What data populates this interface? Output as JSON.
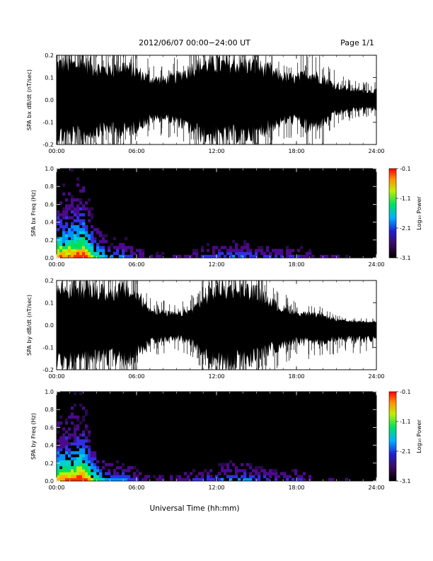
{
  "header": {
    "title": "2012/06/07  00:00−24:00 UT",
    "page": "Page 1/1"
  },
  "xlabel": "Universal Time (hh:mm)",
  "colors": {
    "background": "#ffffff",
    "trace": "#000000",
    "spectrogram_bg": "#000000"
  },
  "chart_data": [
    {
      "type": "line",
      "title": "",
      "ylabel": "SPA bx dB/dt (nT/sec)",
      "xlim": [
        0,
        24
      ],
      "ylim": [
        -0.2,
        0.2
      ],
      "x_ticks": [
        "00:00",
        "06:00",
        "12:00",
        "18:00",
        "24:00"
      ],
      "y_ticks": [
        "-0.2",
        "-0.1",
        "0.0",
        "0.1",
        "0.2"
      ],
      "x": [
        0,
        1,
        2,
        3,
        4,
        5,
        6,
        7,
        8,
        9,
        10,
        11,
        12,
        13,
        14,
        15,
        16,
        17,
        18,
        19,
        20,
        21,
        22,
        23,
        24
      ],
      "series": [
        {
          "values_top": [
            0.2,
            0.2,
            0.2,
            0.18,
            0.17,
            0.19,
            0.16,
            0.12,
            0.11,
            0.13,
            0.17,
            0.2,
            0.2,
            0.2,
            0.2,
            0.19,
            0.16,
            0.13,
            0.12,
            0.15,
            0.12,
            0.08,
            0.06,
            0.05,
            0.05
          ],
          "values_bottom": [
            -0.2,
            -0.2,
            -0.2,
            -0.17,
            -0.16,
            -0.18,
            -0.15,
            -0.11,
            -0.1,
            -0.12,
            -0.16,
            -0.2,
            -0.2,
            -0.2,
            -0.2,
            -0.19,
            -0.15,
            -0.12,
            -0.11,
            -0.16,
            -0.13,
            -0.08,
            -0.06,
            -0.05,
            -0.05
          ]
        }
      ],
      "grid": false
    },
    {
      "type": "heatmap",
      "title": "",
      "ylabel": "SPA bx Freq (Hz)",
      "xlim": [
        0,
        24
      ],
      "ylim": [
        0.0,
        1.0
      ],
      "x_ticks": [
        "00:00",
        "06:00",
        "12:00",
        "18:00",
        "24:00"
      ],
      "y_ticks": [
        "0.0",
        "0.2",
        "0.4",
        "0.6",
        "0.8",
        "1.0"
      ],
      "colorbar": {
        "label": "Log₁₀ Power",
        "ticks": [
          "-0.1",
          "-1.1",
          "-2.1",
          "-3.1"
        ],
        "range": [
          -3.1,
          -0.1
        ]
      },
      "activity_hours": [
        0,
        1,
        2,
        3,
        4,
        5,
        6,
        7,
        8,
        9,
        10,
        11,
        12,
        13,
        14,
        15,
        16,
        17,
        18,
        19,
        20,
        21,
        22,
        23,
        24
      ],
      "activity": [
        0.9,
        0.95,
        1.0,
        0.65,
        0.4,
        0.45,
        0.3,
        0.2,
        0.18,
        0.2,
        0.25,
        0.3,
        0.35,
        0.38,
        0.4,
        0.35,
        0.3,
        0.28,
        0.3,
        0.25,
        0.22,
        0.2,
        0.15,
        0.12,
        0.1
      ]
    },
    {
      "type": "line",
      "title": "",
      "ylabel": "SPA by dB/dt (nT/sec)",
      "xlim": [
        0,
        24
      ],
      "ylim": [
        -0.2,
        0.2
      ],
      "x_ticks": [
        "00:00",
        "06:00",
        "12:00",
        "18:00",
        "24:00"
      ],
      "y_ticks": [
        "-0.2",
        "-0.1",
        "0.0",
        "0.1",
        "0.2"
      ],
      "x": [
        0,
        1,
        2,
        3,
        4,
        5,
        6,
        7,
        8,
        9,
        10,
        11,
        12,
        13,
        14,
        15,
        16,
        17,
        18,
        19,
        20,
        21,
        22,
        23,
        24
      ],
      "series": [
        {
          "values_top": [
            0.2,
            0.2,
            0.2,
            0.19,
            0.18,
            0.2,
            0.17,
            0.09,
            0.07,
            0.06,
            0.08,
            0.14,
            0.2,
            0.2,
            0.2,
            0.18,
            0.13,
            0.09,
            0.07,
            0.06,
            0.05,
            0.03,
            0.02,
            0.02,
            0.02
          ],
          "values_bottom": [
            -0.2,
            -0.2,
            -0.2,
            -0.19,
            -0.18,
            -0.2,
            -0.17,
            -0.1,
            -0.08,
            -0.07,
            -0.09,
            -0.15,
            -0.2,
            -0.2,
            -0.2,
            -0.18,
            -0.14,
            -0.11,
            -0.09,
            -0.1,
            -0.09,
            -0.08,
            -0.08,
            -0.08,
            -0.08
          ]
        }
      ],
      "grid": false
    },
    {
      "type": "heatmap",
      "title": "",
      "ylabel": "SPA by Freq (Hz)",
      "xlim": [
        0,
        24
      ],
      "ylim": [
        0.0,
        1.0
      ],
      "x_ticks": [
        "00:00",
        "06:00",
        "12:00",
        "18:00",
        "24:00"
      ],
      "y_ticks": [
        "0.0",
        "0.2",
        "0.4",
        "0.6",
        "0.8",
        "1.0"
      ],
      "colorbar": {
        "label": "Log₁₀ Power",
        "ticks": [
          "-0.1",
          "-1.1",
          "-2.1",
          "-3.1"
        ],
        "range": [
          -3.1,
          -0.1
        ]
      },
      "activity_hours": [
        0,
        1,
        2,
        3,
        4,
        5,
        6,
        7,
        8,
        9,
        10,
        11,
        12,
        13,
        14,
        15,
        16,
        17,
        18,
        19,
        20,
        21,
        22,
        23,
        24
      ],
      "activity": [
        0.9,
        0.95,
        1.0,
        0.65,
        0.42,
        0.45,
        0.32,
        0.22,
        0.2,
        0.22,
        0.28,
        0.32,
        0.38,
        0.42,
        0.45,
        0.38,
        0.32,
        0.3,
        0.3,
        0.26,
        0.22,
        0.2,
        0.16,
        0.13,
        0.1
      ]
    }
  ]
}
